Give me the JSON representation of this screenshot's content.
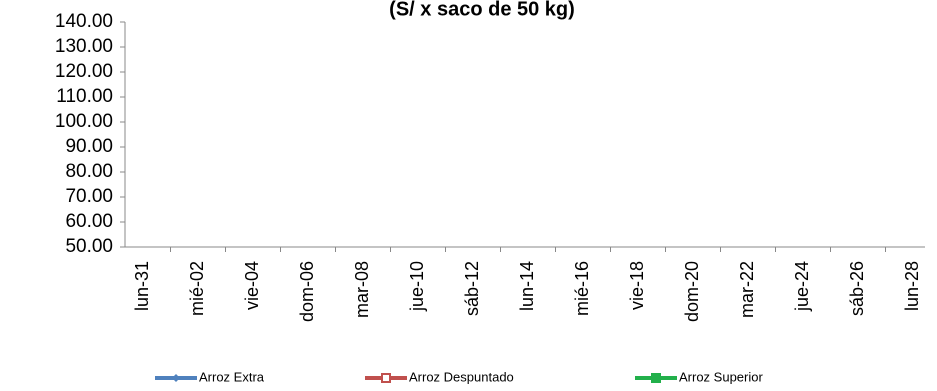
{
  "chart_data": {
    "type": "line",
    "title": "(S/ x saco de 50 kg)",
    "categories": [
      "lun-31",
      "mié-02",
      "vie-04",
      "dom-06",
      "mar-08",
      "jue-10",
      "sáb-12",
      "lun-14",
      "mié-16",
      "vie-18",
      "dom-20",
      "mar-22",
      "jue-24",
      "sáb-26",
      "lun-28"
    ],
    "series": [
      {
        "name": "Arroz Extra",
        "color": "#4f81bd",
        "values": [
          null,
          null,
          null,
          null,
          null,
          null,
          null,
          null,
          null,
          null,
          null,
          null,
          null,
          null,
          null
        ]
      },
      {
        "name": "Arroz Despuntado",
        "color": "#c0504d",
        "values": [
          null,
          null,
          null,
          null,
          null,
          null,
          null,
          null,
          null,
          null,
          null,
          null,
          null,
          null,
          null
        ]
      },
      {
        "name": "Arroz Superior",
        "color": "#22b04b",
        "values": [
          null,
          null,
          null,
          null,
          null,
          null,
          null,
          null,
          null,
          null,
          null,
          null,
          null,
          null,
          null
        ]
      }
    ],
    "ylim": [
      50,
      140
    ],
    "yticks": [
      {
        "value": 50,
        "label": "50.00"
      },
      {
        "value": 60,
        "label": "60.00"
      },
      {
        "value": 70,
        "label": "70.00"
      },
      {
        "value": 80,
        "label": "80.00"
      },
      {
        "value": 90,
        "label": "90.00"
      },
      {
        "value": 100,
        "label": "100.00"
      },
      {
        "value": 110,
        "label": "110.00"
      },
      {
        "value": 120,
        "label": "120.00"
      },
      {
        "value": 130,
        "label": "130.00"
      },
      {
        "value": 140,
        "label": "140.00"
      }
    ],
    "legend": "bottom"
  }
}
